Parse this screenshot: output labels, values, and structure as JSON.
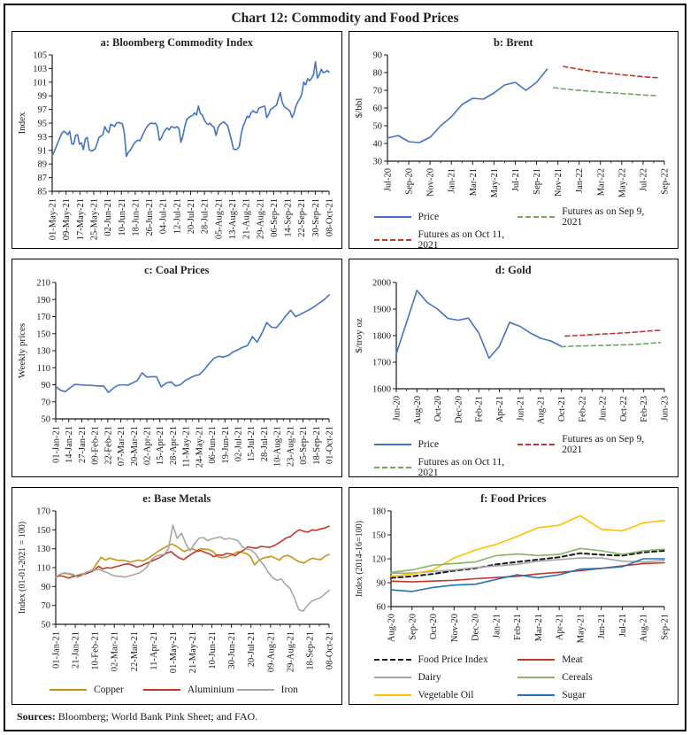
{
  "page": {
    "title": "Chart 12: Commodity and Food Prices",
    "sources_label": "Sources:",
    "sources_text": " Bloomberg; World Bank Pink Sheet; and FAO."
  },
  "colors": {
    "blue": "#4472C4",
    "red": "#C3372B",
    "green": "#6FA85A",
    "copper": "#C6920F",
    "gray": "#A6A6A6",
    "black": "#1A1A1A",
    "orange": "#FFC000",
    "cereals": "#86B565",
    "sugar": "#2272B5",
    "axis": "#1A1A1A"
  },
  "chart_data": [
    {
      "id": "a",
      "type": "line",
      "title": "a: Bloomberg Commodity Index",
      "ylabel": "Index",
      "ylim": [
        85,
        105
      ],
      "ystep": 2,
      "grid": false,
      "x_labels": [
        "01-May-21",
        "09-May-21",
        "17-May-21",
        "25-May-21",
        "02-Jun-21",
        "10-Jun-21",
        "18-Jun-21",
        "26-Jun-21",
        "04-Jul-21",
        "12-Jul-21",
        "20-Jul-21",
        "28-Jul-21",
        "05-Aug-21",
        "13-Aug-21",
        "21-Aug-21",
        "29-Aug-21",
        "06-Sep-21",
        "14-Sep-21",
        "22-Sep-21",
        "30-Sep-21",
        "08-Oct-21"
      ],
      "series": [
        {
          "name": "Bloomberg Commodity Index",
          "color": "blue",
          "dash": false,
          "values": [
            90.2,
            90.8,
            91.5,
            92.2,
            92.9,
            93.5,
            93.8,
            93.6,
            93.3,
            93.8,
            92.0,
            91.9,
            93.2,
            93.3,
            91.9,
            92.1,
            91.1,
            92.7,
            92.9,
            91.1,
            90.9,
            91.0,
            91.2,
            92.0,
            92.9,
            93.1,
            93.3,
            94.5,
            93.9,
            93.6,
            94.8,
            94.7,
            94.5,
            95.0,
            95.1,
            95.0,
            94.9,
            93.5,
            90.1,
            90.7,
            91.0,
            91.5,
            92.0,
            92.3,
            92.5,
            92.4,
            93.0,
            93.6,
            94.2,
            94.6,
            94.9,
            95.0,
            94.9,
            95.0,
            94.4,
            92.5,
            92.8,
            93.5,
            94.0,
            94.3,
            94.0,
            94.5,
            94.4,
            94.3,
            94.5,
            94.2,
            92.2,
            93.1,
            94.5,
            95.5,
            95.8,
            96.0,
            96.1,
            96.5,
            96.2,
            97.5,
            96.4,
            96.2,
            95.5,
            95.0,
            94.8,
            95.0,
            94.6,
            94.4,
            93.2,
            94.3,
            94.8,
            95.0,
            95.2,
            94.9,
            94.6,
            93.5,
            92.4,
            91.2,
            91.1,
            91.2,
            91.6,
            93.5,
            94.6,
            95.3,
            96.0,
            95.8,
            96.5,
            96.8,
            96.6,
            96.5,
            97.2,
            97.3,
            97.4,
            97.5,
            95.8,
            96.3,
            97.0,
            97.2,
            97.4,
            97.6,
            98.6,
            99.5,
            98.0,
            97.4,
            97.2,
            97.0,
            96.7,
            95.8,
            96.4,
            97.5,
            98.1,
            98.6,
            99.2,
            101.0,
            100.6,
            101.5,
            101.2,
            101.6,
            102.1,
            104.0,
            101.6,
            102.1,
            102.9,
            102.4,
            102.5,
            102.7,
            102.5
          ]
        }
      ],
      "legend": null
    },
    {
      "id": "b",
      "type": "line",
      "title": "b: Brent",
      "ylabel": "$/bbl",
      "ylim": [
        30,
        90
      ],
      "ystep": 10,
      "grid": false,
      "x_labels": [
        "Jul-20",
        "Sep-20",
        "Nov-20",
        "Jan-21",
        "Mar-21",
        "May-21",
        "Jul-21",
        "Sep-21",
        "Nov-21",
        "Jan-22",
        "Mar-22",
        "May-22",
        "Jul-22",
        "Sep-22"
      ],
      "series": [
        {
          "name": "Price",
          "color": "blue",
          "dash": false,
          "x_start": 0,
          "x_end": 0.577,
          "values": [
            43,
            44.5,
            41,
            40.5,
            43.5,
            50,
            55,
            62,
            65.5,
            65,
            68.5,
            73,
            74.5,
            70,
            74.5,
            82
          ]
        },
        {
          "name": "Futures as on Sep 9, 2021",
          "color": "green",
          "dash": true,
          "x_start": 0.6,
          "x_end": 0.978,
          "values": [
            71.5,
            70.8,
            70.2,
            69.7,
            69.2,
            68.8,
            68.4,
            68.0,
            67.6,
            67.2,
            67.0
          ]
        },
        {
          "name": "Futures as on Oct 11, 2021",
          "color": "red",
          "dash": true,
          "x_start": 0.635,
          "x_end": 0.978,
          "values": [
            83.5,
            82.5,
            81.6,
            80.8,
            80.1,
            79.5,
            78.9,
            78.4,
            77.9,
            77.4,
            77.1
          ]
        }
      ],
      "legend": {
        "columns": 2,
        "items": [
          {
            "label": "Price",
            "color": "blue",
            "dash": false
          },
          {
            "label": "Futures as on Sep 9, 2021",
            "color": "green",
            "dash": true
          },
          {
            "label": "Futures as on Oct 11, 2021",
            "color": "red",
            "dash": true
          }
        ]
      }
    },
    {
      "id": "c",
      "type": "line",
      "title": "c: Coal Prices",
      "ylabel": "Weekly prices",
      "ylim": [
        50,
        210
      ],
      "ystep": 20,
      "grid": false,
      "x_labels": [
        "01-Jan-21",
        "14-Jan-21",
        "27-Jan-21",
        "09-Feb-21",
        "22-Feb-21",
        "07-Mar-21",
        "20-Mar-21",
        "02-Apr-21",
        "15-Apr-21",
        "28-Apr-21",
        "11-May-21",
        "24-May-21",
        "06-Jun-21",
        "19-Jun-21",
        "02-Jul-21",
        "15-Jul-21",
        "28-Jul-21",
        "10-Aug-21",
        "23-Aug-21",
        "05-Sep-21",
        "18-Sep-21",
        "01-Oct-21"
      ],
      "series": [
        {
          "name": "Coal price",
          "color": "blue",
          "dash": false,
          "values": [
            88,
            83.5,
            82,
            86.5,
            90.5,
            90,
            89.5,
            89.5,
            89,
            88.5,
            88.5,
            81,
            86,
            89.5,
            90,
            89.5,
            92,
            95,
            104,
            99,
            99.5,
            99.5,
            87.5,
            92,
            93.5,
            88.5,
            90,
            95,
            98,
            100.5,
            102,
            108,
            115,
            121,
            123.5,
            122.5,
            124.5,
            128.5,
            131,
            134,
            136,
            146.5,
            140,
            150.5,
            163,
            157.5,
            157,
            163.5,
            171,
            177.5,
            170,
            172.5,
            175.5,
            178.5,
            182,
            186,
            190,
            195.5
          ]
        }
      ],
      "legend": null
    },
    {
      "id": "d",
      "type": "line",
      "title": "d: Gold",
      "ylabel": "$/troy oz",
      "ylim": [
        1600,
        2000
      ],
      "ystep": 100,
      "grid": false,
      "x_labels": [
        "Jun-20",
        "Aug-20",
        "Oct-20",
        "Dec-20",
        "Feb-21",
        "Apr-21",
        "Jun-21",
        "Aug-21",
        "Oct-21",
        "Feb-22",
        "Jun-22",
        "Oct-22",
        "Feb-23",
        "Jun-23"
      ],
      "series": [
        {
          "name": "Price",
          "color": "blue",
          "dash": false,
          "x_start": 0,
          "x_end": 0.615,
          "values": [
            1732,
            1850,
            1970,
            1925,
            1900,
            1865,
            1858,
            1866,
            1810,
            1715,
            1760,
            1850,
            1835,
            1810,
            1790,
            1780,
            1760
          ]
        },
        {
          "name": "Futures as on Sep 9, 2021",
          "color": "red",
          "dash": true,
          "x_start": 0.63,
          "x_end": 0.985,
          "values": [
            1798,
            1800,
            1802,
            1804,
            1806,
            1808,
            1810,
            1812,
            1815,
            1818,
            1820
          ]
        },
        {
          "name": "Futures as on Oct 11, 2021",
          "color": "green",
          "dash": true,
          "x_start": 0.615,
          "x_end": 0.985,
          "values": [
            1758,
            1760,
            1761,
            1762,
            1763,
            1764,
            1765,
            1766,
            1768,
            1771,
            1774
          ]
        }
      ],
      "legend": {
        "columns": 2,
        "items": [
          {
            "label": "Price",
            "color": "blue",
            "dash": false
          },
          {
            "label": "Futures as on Sep 9, 2021",
            "color": "red",
            "dash": true
          },
          {
            "label": "Futures as on Oct 11, 2021",
            "color": "green",
            "dash": true
          }
        ]
      }
    },
    {
      "id": "e",
      "type": "line",
      "title": "e: Base Metals",
      "ylabel": "Index (01-01-2021 = 100)",
      "ylim": [
        50,
        170
      ],
      "ystep": 20,
      "grid": false,
      "x_labels": [
        "01-Jan-21",
        "21-Jan-21",
        "10-Feb-21",
        "02-Mar-21",
        "22-Mar-21",
        "11-Apr-21",
        "01-May-21",
        "21-May-21",
        "10-Jun-21",
        "30-Jun-21",
        "20-Jul-21",
        "09-Aug-21",
        "29-Aug-21",
        "18-Sep-21",
        "08-Oct-21"
      ],
      "series": [
        {
          "name": "Copper",
          "color": "copper",
          "dash": false,
          "values": [
            100,
            103,
            104,
            103.5,
            102,
            101.5,
            103,
            104,
            105.5,
            108,
            115,
            121,
            118,
            120,
            119,
            117.5,
            118,
            117,
            116,
            117,
            118,
            117,
            119,
            122,
            125,
            128,
            130.5,
            133,
            135,
            133,
            130,
            127,
            129,
            130,
            128,
            130,
            129.5,
            129,
            127,
            122,
            120.5,
            121,
            122.5,
            124.5,
            127,
            126,
            125,
            122,
            113,
            117.5,
            120,
            121,
            122,
            120,
            118,
            122,
            123,
            121,
            118,
            116,
            115,
            118,
            120,
            119,
            118.5,
            122,
            124
          ]
        },
        {
          "name": "Aluminium",
          "color": "red",
          "dash": false,
          "values": [
            100,
            101.5,
            100.5,
            99,
            100.5,
            101,
            102,
            103.5,
            105,
            107,
            111.5,
            108.5,
            110,
            109.5,
            111,
            112,
            113.5,
            114,
            112.5,
            110.5,
            112,
            114,
            116,
            118,
            120,
            122.5,
            125.5,
            127,
            123,
            120,
            118.5,
            122,
            125,
            127.5,
            128,
            126,
            124.5,
            121.5,
            123.5,
            123,
            125,
            124.5,
            122.5,
            126,
            128.5,
            132,
            131,
            130.5,
            132.5,
            132,
            131.5,
            133,
            135.5,
            138.5,
            141.5,
            143,
            147,
            150,
            148.5,
            147.5,
            150,
            149.5,
            151,
            152,
            154
          ]
        },
        {
          "name": "Iron",
          "color": "gray",
          "dash": false,
          "values": [
            100,
            103,
            104.5,
            104,
            103,
            100,
            101.5,
            105,
            106.5,
            107.5,
            108,
            106,
            104.5,
            102,
            101,
            100.5,
            100,
            101.5,
            102.5,
            104,
            106.5,
            110.5,
            118,
            122,
            123.5,
            124,
            130,
            155,
            141,
            146.5,
            135,
            128,
            135.5,
            141,
            142,
            138.5,
            140.5,
            141.5,
            142.5,
            140,
            141,
            140,
            138.5,
            132,
            130,
            128.5,
            125,
            118,
            112.5,
            105,
            99.5,
            96.5,
            98,
            92,
            88,
            78,
            65.5,
            64,
            70,
            74.5,
            76.5,
            78,
            82,
            86
          ]
        }
      ],
      "legend": {
        "columns": 3,
        "items": [
          {
            "label": "Copper",
            "color": "copper",
            "dash": false
          },
          {
            "label": "Aluminium",
            "color": "red",
            "dash": false
          },
          {
            "label": "Iron",
            "color": "gray",
            "dash": false
          }
        ]
      }
    },
    {
      "id": "f",
      "type": "line",
      "title": "f: Food Prices",
      "ylabel": "Index (2014-16=100)",
      "ylim": [
        60,
        180
      ],
      "ystep": 30,
      "grid": false,
      "x_labels": [
        "Aug-20",
        "Sep-20",
        "Oct-20",
        "Nov-20",
        "Dec-20",
        "Jan-21",
        "Feb-21",
        "Mar-21",
        "Apr-21",
        "May-21",
        "Jun-21",
        "Jul-21",
        "Aug-21",
        "Sep-21"
      ],
      "series": [
        {
          "name": "Food Price Index",
          "color": "black",
          "dash": true,
          "width": 2,
          "values": [
            96,
            98,
            101,
            105,
            108,
            113,
            116,
            119,
            122,
            127,
            125,
            124,
            128,
            130
          ]
        },
        {
          "name": "Dairy",
          "color": "gray",
          "dash": false,
          "values": [
            102,
            102,
            104,
            106,
            109,
            111,
            113,
            117,
            119,
            121,
            121,
            117,
            116,
            118
          ]
        },
        {
          "name": "Vegetable Oil",
          "color": "orange",
          "dash": false,
          "values": [
            98,
            101,
            106,
            121,
            131,
            138,
            148,
            159,
            162,
            174,
            157,
            155,
            165,
            168
          ]
        },
        {
          "name": "Meat",
          "color": "red",
          "dash": false,
          "values": [
            92,
            91,
            92,
            93,
            95,
            96.5,
            98,
            101,
            103,
            105,
            108,
            111,
            114,
            115
          ]
        },
        {
          "name": "Cereals",
          "color": "cereals",
          "dash": false,
          "values": [
            103,
            106,
            112,
            114,
            116,
            124,
            126,
            124,
            125.5,
            133,
            130,
            125.5,
            130,
            132
          ]
        },
        {
          "name": "Sugar",
          "color": "sugar",
          "dash": false,
          "values": [
            81,
            79,
            84,
            87,
            88,
            94,
            100,
            96,
            100,
            107,
            108,
            110,
            120,
            120
          ]
        }
      ],
      "legend": {
        "columns": 2,
        "items": [
          {
            "label": "Food Price Index",
            "color": "black",
            "dash": true
          },
          {
            "label": "Meat",
            "color": "red",
            "dash": false
          },
          {
            "label": "Dairy",
            "color": "gray",
            "dash": false
          },
          {
            "label": "Cereals",
            "color": "cereals",
            "dash": false
          },
          {
            "label": "Vegetable Oil",
            "color": "orange",
            "dash": false
          },
          {
            "label": "Sugar",
            "color": "sugar",
            "dash": false
          }
        ]
      }
    }
  ]
}
